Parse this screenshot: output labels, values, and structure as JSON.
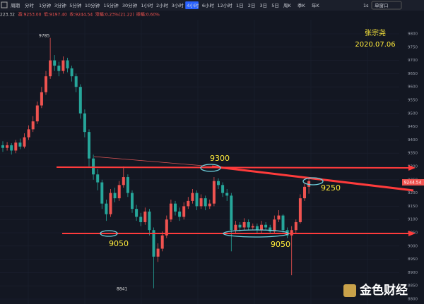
{
  "toolbar": {
    "items": [
      "周期",
      "分时",
      "1分钟",
      "3分钟",
      "5分钟",
      "10分钟",
      "15分钟",
      "30分钟",
      "1小时",
      "2小时",
      "3小时",
      "4小时",
      "6小时",
      "12小时",
      "1日",
      "2日",
      "3日",
      "5日",
      "周K",
      "季K",
      "年K"
    ],
    "active": 11,
    "right": [
      "1s",
      "单窗口"
    ]
  },
  "info": [
    "223.32",
    "高:9253.00",
    "低:9197.40",
    "收:9244.54",
    "涨幅:0.23%(21.22)",
    "振幅:0.60%"
  ],
  "author": "张宗尧",
  "date": "2020.07.06",
  "logo": "金色财经",
  "annotations": [
    "9300",
    "9250",
    "9050",
    "9050"
  ],
  "chart_data": {
    "type": "candlestick",
    "up_color": "#ef5350",
    "down_color": "#26a69a",
    "grid": true,
    "ylim": [
      8800,
      9800
    ],
    "yticks": [
      8800,
      8850,
      8900,
      8950,
      9000,
      9050,
      9100,
      9150,
      9200,
      9250,
      9300,
      9350,
      9400,
      9450,
      9500,
      9550,
      9600,
      9650,
      9700,
      9750,
      9800
    ],
    "open": [
      9380,
      9370,
      9380,
      9360,
      9390,
      9375,
      9410,
      9440,
      9470,
      9530,
      9580,
      9640,
      9700,
      9680,
      9660,
      9700,
      9670,
      9640,
      9600,
      9500,
      9430,
      9330,
      9270,
      9240,
      9160,
      9120,
      9200,
      9180,
      9230,
      9260,
      9200,
      9140,
      9110,
      9090,
      9130,
      9060,
      8960,
      8990,
      9040,
      9100,
      9160,
      9130,
      9110,
      9150,
      9170,
      9200,
      9150,
      9180,
      9150,
      9160,
      9245,
      9230,
      9200,
      9190,
      9060,
      9080,
      9070,
      9090,
      9070,
      9075,
      9060,
      9080,
      9070,
      9055,
      9100,
      9115,
      9060,
      9040,
      9060,
      9090,
      9180,
      9223.32
    ],
    "high": [
      9395,
      9392,
      9388,
      9400,
      9405,
      9425,
      9455,
      9490,
      9545,
      9600,
      9660,
      9785,
      9720,
      9695,
      9715,
      9710,
      9680,
      9650,
      9610,
      9515,
      9440,
      9345,
      9290,
      9250,
      9175,
      9215,
      9220,
      9245,
      9300,
      9270,
      9210,
      9155,
      9125,
      9145,
      9140,
      9070,
      9010,
      9055,
      9115,
      9175,
      9170,
      9145,
      9165,
      9185,
      9215,
      9210,
      9195,
      9190,
      9175,
      9260,
      9255,
      9240,
      9215,
      9200,
      9095,
      9090,
      9105,
      9100,
      9085,
      9085,
      9095,
      9090,
      9080,
      9115,
      9135,
      9120,
      9070,
      9075,
      9100,
      9195,
      9235,
      9253
    ],
    "low": [
      9355,
      9360,
      9345,
      9350,
      9365,
      9368,
      9400,
      9430,
      9460,
      9520,
      9570,
      9630,
      9660,
      9640,
      9650,
      9655,
      9620,
      9580,
      9480,
      9410,
      9300,
      9250,
      9210,
      9140,
      9095,
      9110,
      9165,
      9170,
      9220,
      9185,
      9125,
      9095,
      9075,
      9080,
      9040,
      8841,
      8940,
      8980,
      9030,
      9090,
      9115,
      9095,
      9100,
      9140,
      9160,
      9135,
      9140,
      9135,
      9140,
      9150,
      9215,
      9185,
      9170,
      8980,
      9050,
      9055,
      9060,
      9060,
      9060,
      9050,
      9050,
      9060,
      9045,
      9050,
      9090,
      9045,
      9030,
      8890,
      9050,
      9085,
      9170,
      9197.4
    ],
    "close": [
      9370,
      9380,
      9360,
      9390,
      9375,
      9410,
      9440,
      9470,
      9530,
      9580,
      9640,
      9700,
      9680,
      9660,
      9700,
      9670,
      9640,
      9600,
      9500,
      9430,
      9330,
      9270,
      9240,
      9160,
      9120,
      9200,
      9180,
      9230,
      9260,
      9200,
      9140,
      9110,
      9090,
      9130,
      9060,
      8960,
      8990,
      9040,
      9100,
      9160,
      9130,
      9110,
      9150,
      9170,
      9200,
      9150,
      9180,
      9150,
      9160,
      9245,
      9230,
      9200,
      9190,
      9060,
      9080,
      9070,
      9090,
      9070,
      9075,
      9060,
      9080,
      9070,
      9055,
      9100,
      9115,
      9060,
      9040,
      9060,
      9090,
      9180,
      9223.32,
      9244.54
    ]
  }
}
